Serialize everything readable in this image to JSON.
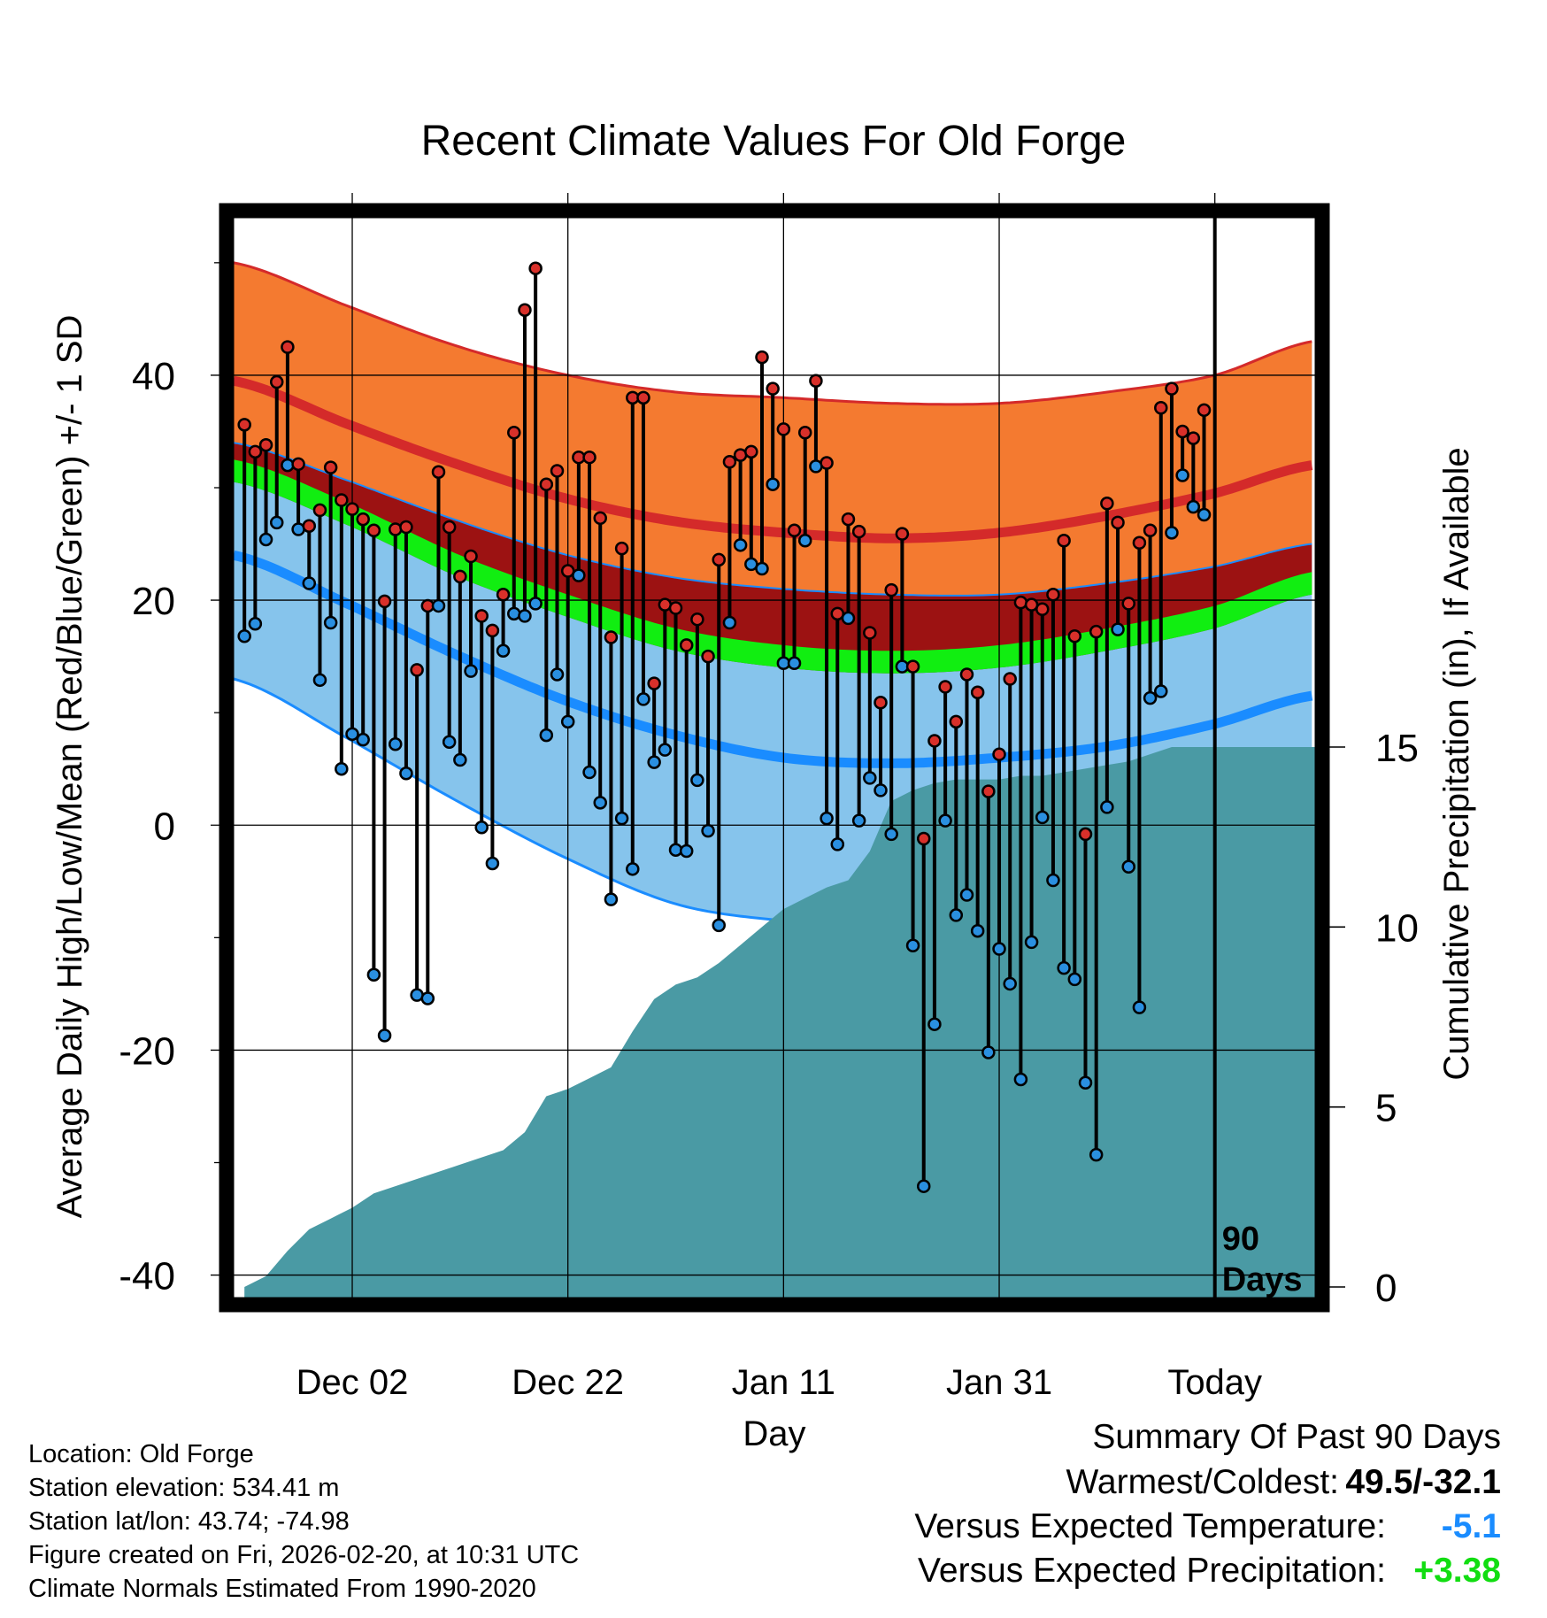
{
  "colors": {
    "high_band": "#f47a30",
    "high_line": "#d42a2a",
    "mean_band": "#9c1212",
    "mean_line": "#11ee11",
    "low_band": "#86c4ec",
    "low_line": "#1a8cff",
    "precip_fill": "#4a9aa4",
    "high_point": "#d8302a",
    "low_point": "#2a8fe0",
    "summary_temp": "#1a8cff",
    "summary_precip": "#11dd11"
  },
  "chart_data": {
    "type": "line",
    "title": "Recent Climate Values For Old Forge",
    "xlabel": "Day",
    "ylabel": "Average Daily High/Low/Mean (Red/Blue/Green) +/- 1 SD",
    "y2label": "Cumulative Precipitation (in), If Available",
    "ylim": [
      -42,
      54
    ],
    "y2lim": [
      0,
      30
    ],
    "xlim": [
      -91,
      9.3
    ],
    "yticks": [
      -40,
      -20,
      0,
      20,
      40
    ],
    "yticks_labels": [
      "-40",
      "-20",
      "0",
      "20",
      "40"
    ],
    "y2ticks": [
      0,
      5,
      10,
      15
    ],
    "y2ticks_labels": [
      "0",
      "5",
      "10",
      "15"
    ],
    "x_ticks": [
      {
        "day": -80,
        "label": "Dec 02"
      },
      {
        "day": -60,
        "label": "Dec 22"
      },
      {
        "day": -40,
        "label": "Jan 11"
      },
      {
        "day": -20,
        "label": "Jan 31"
      },
      {
        "day": 0,
        "label": "Today"
      }
    ],
    "today_marker": "90\nDays",
    "normals": {
      "days": [
        -91,
        -80,
        -70,
        -60,
        -50,
        -40,
        -30,
        -20,
        -10,
        0,
        9
      ],
      "high_mean": [
        39.5,
        35.5,
        32,
        29,
        27,
        26,
        25.5,
        26,
        27.5,
        29.5,
        32
      ],
      "high_upper": [
        50,
        46,
        42.5,
        40,
        38.5,
        38,
        37.5,
        37.5,
        38.5,
        40,
        43
      ],
      "mean_lower": [
        30.5,
        26.5,
        22,
        18.5,
        15.5,
        14,
        13.5,
        14,
        15.5,
        17.5,
        20.5
      ],
      "mean_upper": [
        32.5,
        28.5,
        24,
        20.5,
        17.5,
        16,
        15.5,
        16,
        17.5,
        19.5,
        22.5
      ],
      "low_mean": [
        24,
        19.5,
        15,
        11,
        8,
        6,
        5.5,
        6,
        7,
        9,
        11.5
      ],
      "low_upper": [
        34,
        30.5,
        27,
        24,
        22,
        21,
        20.5,
        20.5,
        21.5,
        23,
        25
      ],
      "low_lower": [
        13,
        7.5,
        2,
        -3,
        -7,
        -8.5,
        -9,
        -8.5,
        -7,
        -5,
        -2.5
      ]
    },
    "series": [
      {
        "name": "Daily High",
        "values": [
          35.6,
          33.2,
          33.8,
          39.4,
          42.5,
          32.1,
          26.6,
          28.0,
          31.8,
          28.9,
          28.1,
          27.2,
          26.2,
          19.9,
          26.3,
          26.5,
          13.8,
          19.5,
          31.4,
          26.5,
          22.1,
          23.9,
          18.6,
          17.3,
          20.5,
          34.9,
          45.8,
          49.5,
          30.3,
          31.5,
          22.6,
          32.7,
          32.7,
          27.3,
          16.7,
          24.6,
          38.0,
          38.0,
          12.6,
          19.6,
          19.3,
          16.0,
          18.3,
          15.0,
          23.6,
          32.3,
          32.9,
          33.2,
          41.6,
          38.8,
          35.2,
          26.2,
          34.9,
          39.5,
          32.2,
          18.8,
          27.2,
          26.1,
          17.1,
          10.9,
          20.9,
          25.9,
          14.1,
          -1.2,
          7.5,
          12.3,
          9.2,
          13.4,
          11.8,
          3.0,
          6.3,
          13.0,
          19.8,
          19.6,
          19.2,
          20.5,
          25.3,
          16.8,
          -0.8,
          17.2,
          28.6,
          26.9,
          19.7,
          25.1,
          26.2,
          37.1,
          38.8,
          35.0,
          34.4,
          36.9
        ]
      },
      {
        "name": "Daily Low",
        "values": [
          16.8,
          17.9,
          25.4,
          26.9,
          32.0,
          26.3,
          21.5,
          12.9,
          18.0,
          5.0,
          8.1,
          7.6,
          -13.3,
          -18.7,
          7.2,
          4.6,
          -15.1,
          -15.4,
          19.5,
          7.4,
          5.8,
          13.7,
          -0.2,
          -3.4,
          15.5,
          18.8,
          18.6,
          19.7,
          8.0,
          13.4,
          9.2,
          22.2,
          4.7,
          2.0,
          -6.6,
          0.6,
          -3.9,
          11.2,
          5.6,
          6.7,
          -2.2,
          -2.3,
          4.0,
          -0.5,
          -8.9,
          18.0,
          24.9,
          23.2,
          22.8,
          30.3,
          14.4,
          14.4,
          25.3,
          31.9,
          0.6,
          -1.7,
          18.4,
          0.4,
          4.2,
          3.1,
          -0.8,
          14.1,
          -10.7,
          -32.1,
          -17.7,
          0.4,
          -8.0,
          -6.2,
          -9.4,
          -20.2,
          -11.0,
          -14.1,
          -22.6,
          -10.4,
          0.7,
          -4.9,
          -12.7,
          -13.7,
          -22.9,
          -29.3,
          1.6,
          17.4,
          -3.7,
          -16.2,
          11.3,
          11.9,
          26.0,
          31.1,
          28.3,
          27.6
        ]
      }
    ],
    "precipitation": {
      "name": "Cumulative Precipitation",
      "days": [
        -90,
        -88,
        -86,
        -84,
        -82,
        -80,
        -78,
        -76,
        -74,
        -72,
        -70,
        -68,
        -66,
        -64,
        -62,
        -60,
        -58,
        -56,
        -54,
        -52,
        -50,
        -48,
        -46,
        -44,
        -42,
        -40,
        -38,
        -36,
        -34,
        -32,
        -30,
        -28,
        -26,
        -24,
        -22,
        -20,
        -18,
        -16,
        -14,
        -12,
        -10,
        -8,
        -6,
        -4,
        -2,
        0,
        2,
        4,
        6,
        8,
        9.3
      ],
      "values": [
        0.0,
        0.3,
        1.0,
        1.6,
        1.9,
        2.2,
        2.6,
        2.8,
        3.0,
        3.2,
        3.4,
        3.6,
        3.8,
        4.3,
        5.3,
        5.5,
        5.8,
        6.1,
        7.1,
        8.0,
        8.4,
        8.6,
        9.0,
        9.5,
        10.0,
        10.5,
        10.8,
        11.1,
        11.3,
        12.1,
        13.5,
        13.8,
        14.0,
        14.1,
        14.1,
        14.1,
        14.2,
        14.2,
        14.3,
        14.4,
        14.5,
        14.6,
        14.8,
        15.0,
        15.0,
        15.0,
        15.0,
        15.0,
        15.0,
        15.0,
        15.0
      ]
    }
  },
  "info": {
    "location": "Location: Old Forge",
    "elevation": "Station elevation: 534.41 m",
    "latlon": "Station lat/lon: 43.74; -74.98",
    "created": "Figure created on Fri, 2026-02-20, at 10:31 UTC",
    "normals": "Climate Normals Estimated From 1990-2020"
  },
  "summary": {
    "heading": "Summary Of Past 90 Days",
    "warm_cold_label": "Warmest/Coldest:",
    "warm_cold_value": "49.5/-32.1",
    "temp_label": "Versus Expected Temperature:",
    "temp_value": "-5.1",
    "precip_label": "Versus Expected Precipitation:",
    "precip_value": "+3.38"
  }
}
